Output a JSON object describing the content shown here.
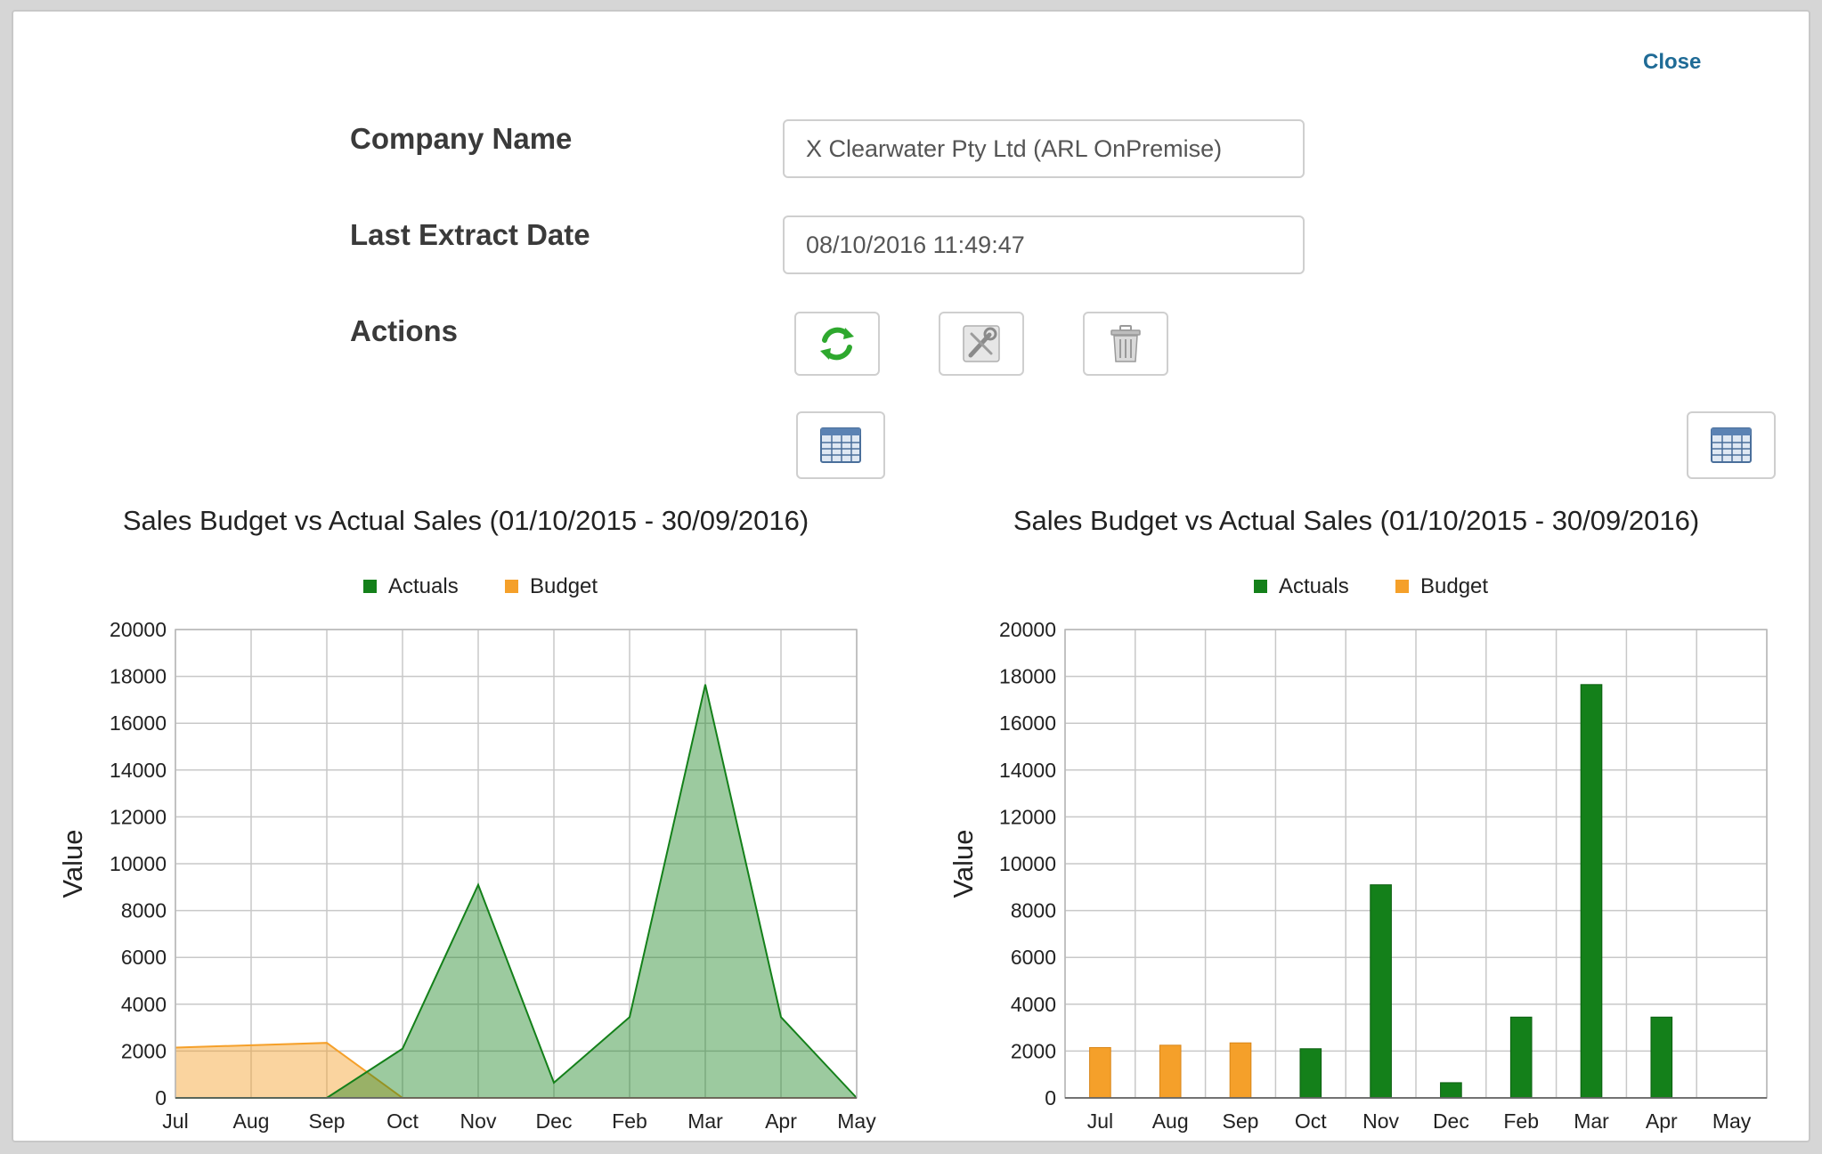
{
  "dialog": {
    "close_label": "Close",
    "company_name": {
      "label": "Company Name",
      "value": "X Clearwater Pty Ltd (ARL OnPremise)"
    },
    "last_extract": {
      "label": "Last Extract Date",
      "value": "08/10/2016 11:49:47"
    },
    "actions": {
      "label": "Actions",
      "buttons": [
        {
          "icon": "refresh-icon"
        },
        {
          "icon": "tools-icon"
        },
        {
          "icon": "trash-icon"
        }
      ]
    },
    "table_view_buttons": [
      {
        "icon": "table-icon"
      },
      {
        "icon": "table-icon"
      }
    ]
  },
  "colors": {
    "actuals": "#14801a",
    "budget": "#f5a02a",
    "grid": "#c8c8c8",
    "link": "#1f6b96"
  },
  "chart_data": [
    {
      "type": "area",
      "title": "Sales Budget vs Actual Sales (01/10/2015 - 30/09/2016)",
      "ylabel": "Value",
      "xlabel": "",
      "ylim": [
        0,
        20000
      ],
      "yticks": [
        0,
        2000,
        4000,
        6000,
        8000,
        10000,
        12000,
        14000,
        16000,
        18000,
        20000
      ],
      "categories": [
        "Jul",
        "Aug",
        "Sep",
        "Oct",
        "Nov",
        "Dec",
        "Feb",
        "Mar",
        "Apr",
        "May"
      ],
      "legend": "top-center",
      "grid": true,
      "series": [
        {
          "name": "Actuals",
          "values": [
            0,
            0,
            0,
            2100,
            9100,
            650,
            3450,
            17650,
            3450,
            0
          ]
        },
        {
          "name": "Budget",
          "values": [
            2150,
            2250,
            2350,
            0,
            0,
            0,
            0,
            0,
            0,
            0
          ]
        }
      ]
    },
    {
      "type": "bar",
      "title": "Sales Budget vs Actual Sales (01/10/2015 - 30/09/2016)",
      "ylabel": "Value",
      "xlabel": "",
      "ylim": [
        0,
        20000
      ],
      "yticks": [
        0,
        2000,
        4000,
        6000,
        8000,
        10000,
        12000,
        14000,
        16000,
        18000,
        20000
      ],
      "categories": [
        "Jul",
        "Aug",
        "Sep",
        "Oct",
        "Nov",
        "Dec",
        "Feb",
        "Mar",
        "Apr",
        "May"
      ],
      "legend": "top-center",
      "grid": true,
      "series": [
        {
          "name": "Actuals",
          "values": [
            0,
            0,
            0,
            2100,
            9100,
            650,
            3450,
            17650,
            3450,
            0
          ]
        },
        {
          "name": "Budget",
          "values": [
            2150,
            2250,
            2350,
            0,
            0,
            0,
            0,
            0,
            0,
            0
          ]
        }
      ]
    }
  ]
}
